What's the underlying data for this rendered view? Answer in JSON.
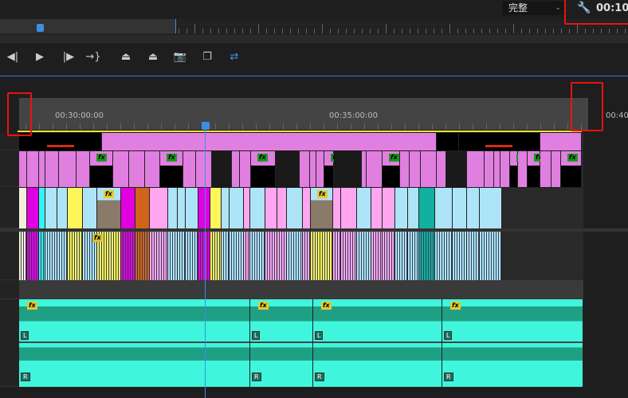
{
  "monitor": {
    "quality_dropdown": "完整",
    "timecode": "00:10:",
    "wrench_icon": "wrench-icon"
  },
  "transport": [
    {
      "name": "step-back-button",
      "glyph": "◀|"
    },
    {
      "name": "play-button",
      "glyph": "▶"
    },
    {
      "name": "step-forward-button",
      "glyph": "|▶"
    },
    {
      "name": "go-to-out-button",
      "glyph": "→}"
    },
    {
      "name": "lift-button",
      "glyph": "⏏"
    },
    {
      "name": "extract-button",
      "glyph": "⏏"
    },
    {
      "name": "export-frame-button",
      "glyph": "📷"
    },
    {
      "name": "compare-view-button",
      "glyph": "❐"
    },
    {
      "name": "proxy-toggle-button",
      "glyph": "⇄"
    }
  ],
  "timeline": {
    "labels": [
      "00:30:00:00",
      "00:35:00:00",
      "00:40:"
    ]
  },
  "audio": {
    "fx": "fx",
    "left": "L",
    "right": "R"
  },
  "colors": {
    "pink": "#e07fe0",
    "lightblue": "#aee4f7",
    "yellow": "#fdf55a",
    "magenta": "#e000e0",
    "cyan": "#33f5f5",
    "orange": "#d0641a",
    "lightpink": "#ffa6f0",
    "teal": "#3ff5dc",
    "darkteal": "#1fa085",
    "accent": "#3a8ee6",
    "highlight": "#e11111"
  }
}
